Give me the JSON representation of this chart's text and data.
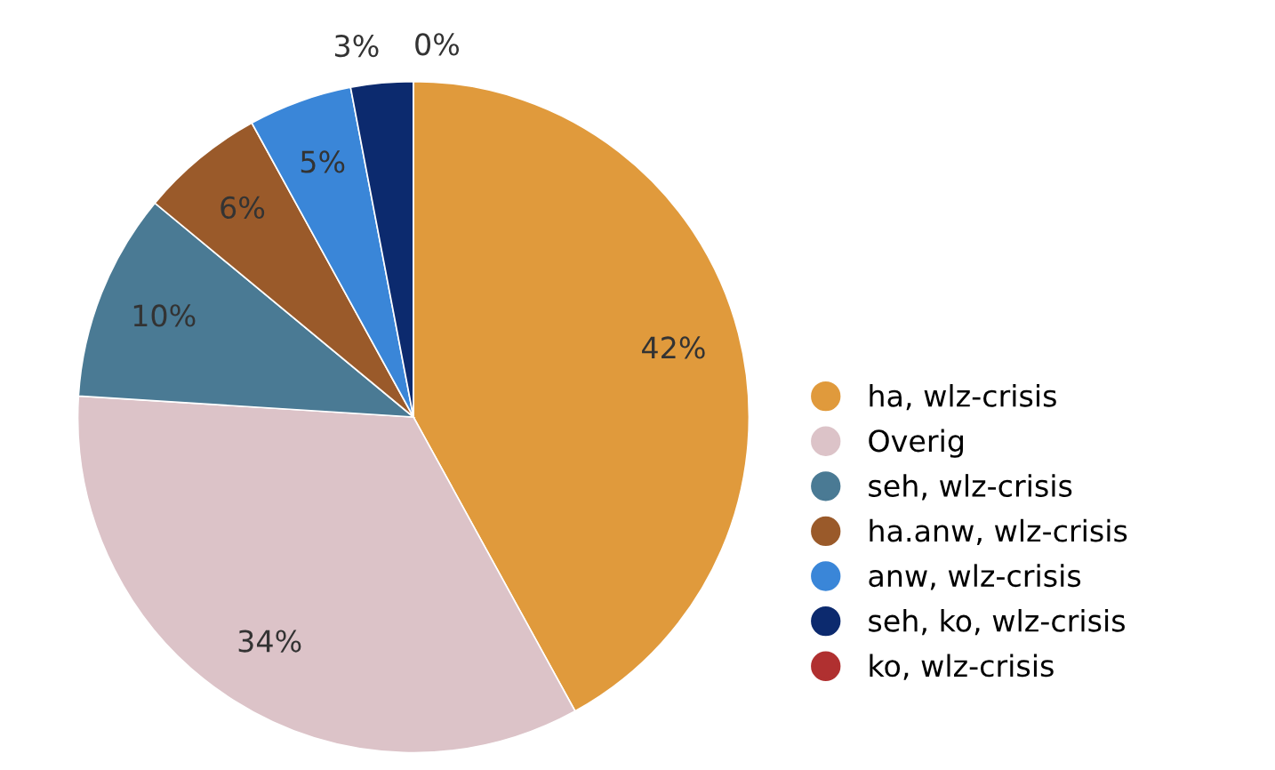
{
  "chart_data": {
    "type": "pie",
    "categories": [
      "ha, wlz-crisis",
      "Overig",
      "seh, wlz-crisis",
      "ha.anw, wlz-crisis",
      "anw, wlz-crisis",
      "seh, ko, wlz-crisis",
      "ko, wlz-crisis"
    ],
    "values": [
      42,
      34,
      10,
      6,
      5,
      3,
      0
    ],
    "colors": [
      "#e09a3c",
      "#dcc3c8",
      "#4a7a94",
      "#9a5a2a",
      "#3a86d8",
      "#0c2a6e",
      "#b03030"
    ],
    "value_labels": [
      "42%",
      "34%",
      "10%",
      "6%",
      "5%",
      "3%",
      "0%"
    ],
    "legend": "right"
  }
}
